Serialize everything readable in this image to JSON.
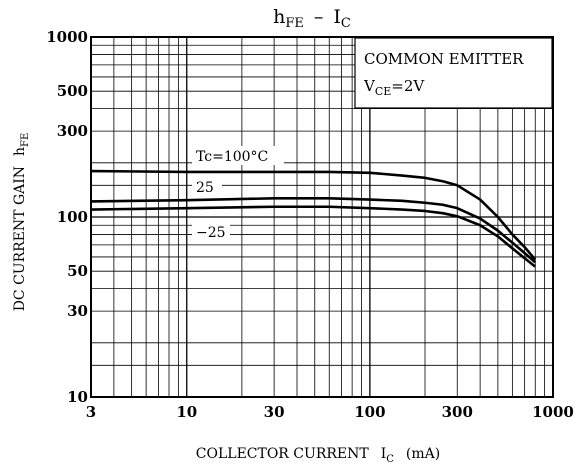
{
  "chart_data": {
    "type": "line",
    "title": {
      "main": "h",
      "main_sub": "FE",
      "sep": "–",
      "second": "I",
      "second_sub": "C"
    },
    "xlabel": {
      "text": "COLLECTOR CURRENT",
      "symbol": "I",
      "symbol_sub": "C",
      "unit": "(mA)"
    },
    "ylabel": {
      "text": "DC CURRENT GAIN",
      "symbol": "h",
      "symbol_sub": "FE"
    },
    "x_scale": "log",
    "y_scale": "log",
    "xlim": [
      3,
      1000
    ],
    "ylim": [
      10,
      1000
    ],
    "x_ticks": [
      {
        "value": 3,
        "label": "3"
      },
      {
        "value": 10,
        "label": "10"
      },
      {
        "value": 30,
        "label": "30"
      },
      {
        "value": 100,
        "label": "100"
      },
      {
        "value": 300,
        "label": "300"
      },
      {
        "value": 1000,
        "label": "1000"
      }
    ],
    "y_ticks": [
      {
        "value": 10,
        "label": "10"
      },
      {
        "value": 30,
        "label": "30"
      },
      {
        "value": 50,
        "label": "50"
      },
      {
        "value": 100,
        "label": "100"
      },
      {
        "value": 300,
        "label": "300"
      },
      {
        "value": 500,
        "label": "500"
      },
      {
        "value": 1000,
        "label": "1000"
      }
    ],
    "grid": true,
    "conditions": {
      "line1": "COMMON EMITTER",
      "line2_symbol": "V",
      "line2_sub": "CE",
      "line2_value": "=2V",
      "placement": "top-right"
    },
    "series": [
      {
        "name": "Tc=100°C",
        "x": [
          3,
          10,
          30,
          60,
          100,
          150,
          200,
          250,
          300,
          400,
          500,
          600,
          700,
          800
        ],
        "y": [
          180,
          178,
          178,
          178,
          176,
          170,
          165,
          158,
          150,
          125,
          100,
          80,
          68,
          58
        ]
      },
      {
        "name": "25",
        "x": [
          3,
          10,
          30,
          60,
          100,
          150,
          200,
          250,
          300,
          400,
          500,
          600,
          700,
          800
        ],
        "y": [
          122,
          124,
          127,
          127,
          125,
          123,
          120,
          117,
          112,
          98,
          84,
          72,
          63,
          56
        ]
      },
      {
        "name": "−25",
        "x": [
          3,
          10,
          30,
          60,
          100,
          150,
          200,
          250,
          300,
          400,
          500,
          600,
          700,
          800
        ],
        "y": [
          110,
          112,
          114,
          114,
          112,
          110,
          108,
          105,
          101,
          90,
          78,
          67,
          59,
          53
        ]
      }
    ]
  }
}
